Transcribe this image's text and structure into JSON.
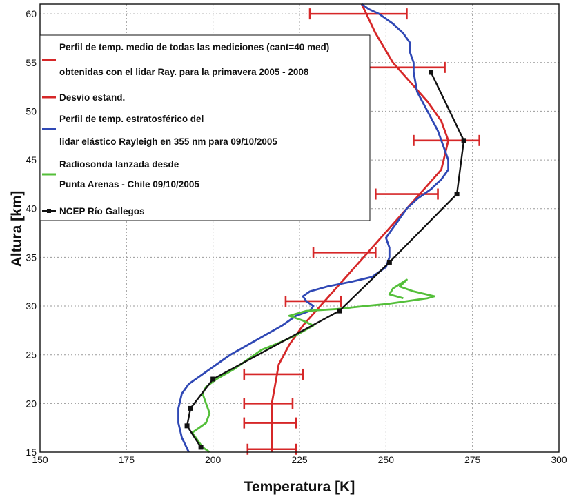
{
  "chart_data": {
    "type": "line",
    "xlabel": "Temperatura  [K]",
    "ylabel": "Altura [km]",
    "xlim": [
      150,
      300
    ],
    "ylim": [
      15,
      61
    ],
    "x_ticks": [
      150,
      175,
      200,
      225,
      250,
      275,
      300
    ],
    "y_ticks": [
      15,
      20,
      25,
      30,
      35,
      40,
      45,
      50,
      55,
      60
    ],
    "grid": true,
    "legend_position": "top-left",
    "legend_entries": [
      "Perfil de temp. medio de todas las mediciones (cant=40 med)",
      "obtenidas con el lidar Ray. para la primavera 2005 - 2008",
      "Desvio estand.",
      "Perfil de temp. estratosférico del",
      "lidar elástico Rayleigh en 355 nm para 09/10/2005",
      "Radiosonda lanzada desde",
      "Punta Arenas - Chile 09/10/2005",
      "NCEP Río Gallegos"
    ],
    "series": [
      {
        "name": "Perfil de temp. medio de todas las mediciones (cant=40 med) obtenidas con el lidar Ray. para la primavera 2005 - 2008",
        "color": "#d62728",
        "x": [
          217,
          217,
          217,
          218,
          219,
          222,
          226,
          231,
          236,
          241,
          246,
          251,
          256,
          261,
          266,
          268,
          266,
          262,
          257,
          252,
          247,
          243
        ],
        "y": [
          15,
          18,
          20,
          22,
          24,
          26,
          28,
          30,
          32,
          34,
          36,
          38,
          40,
          42,
          44,
          47,
          49,
          51,
          53,
          55,
          58,
          61
        ]
      },
      {
        "name": "Desvio estand.",
        "color": "#d62728",
        "type": "errorbar",
        "points": [
          {
            "y": 15.3,
            "x": 217,
            "xmin": 210,
            "xmax": 224
          },
          {
            "y": 18,
            "x": 216.5,
            "xmin": 209,
            "xmax": 224
          },
          {
            "y": 20,
            "x": 216,
            "xmin": 209,
            "xmax": 223
          },
          {
            "y": 23,
            "x": 217.5,
            "xmin": 209,
            "xmax": 226
          },
          {
            "y": 30.5,
            "x": 229.5,
            "xmin": 221,
            "xmax": 237
          },
          {
            "y": 35.5,
            "x": 238,
            "xmin": 229,
            "xmax": 247
          },
          {
            "y": 41.5,
            "x": 256,
            "xmin": 247,
            "xmax": 265
          },
          {
            "y": 47,
            "x": 267.5,
            "xmin": 258,
            "xmax": 277
          },
          {
            "y": 54.5,
            "x": 256,
            "xmin": 245,
            "xmax": 267
          },
          {
            "y": 60,
            "x": 242,
            "xmin": 228,
            "xmax": 256
          }
        ]
      },
      {
        "name": "Perfil de temp. estratosférico del lidar elástico Rayleigh en 355 nm para 09/10/2005",
        "color": "#2f48b5",
        "x": [
          193,
          191,
          190,
          190,
          191,
          193,
          197,
          201,
          205,
          210,
          215,
          220,
          224,
          228,
          229,
          227,
          226,
          228,
          233,
          240,
          246,
          250,
          251,
          251,
          250,
          253,
          256,
          259,
          263,
          266,
          268,
          268,
          267,
          265,
          262,
          259,
          258,
          258,
          257,
          257,
          255,
          252,
          248,
          245,
          243
        ],
        "y": [
          15,
          16.5,
          18,
          19.5,
          21,
          22,
          23,
          24,
          25,
          26,
          27,
          28,
          29,
          29.5,
          30,
          30.5,
          31,
          31.5,
          32,
          32.5,
          33,
          34,
          35,
          36,
          37,
          38.5,
          40,
          41,
          42,
          43,
          44,
          45,
          46,
          48,
          50,
          52,
          54,
          55,
          56,
          57,
          58,
          59,
          60,
          60.5,
          61
        ]
      },
      {
        "name": "Radiosonda lanzada desde Punta Arenas - Chile 09/10/2005",
        "color": "#54bf3a",
        "x": [
          199,
          197,
          196,
          194,
          196,
          198,
          199,
          198,
          197,
          198,
          201,
          206,
          210,
          214,
          219,
          224,
          229,
          226,
          222,
          227,
          236,
          244,
          250,
          256,
          262,
          264,
          258,
          254,
          256,
          252,
          251,
          255
        ],
        "y": [
          15,
          15.5,
          16,
          17,
          17.5,
          18,
          19,
          20,
          21,
          21.7,
          22.5,
          23.5,
          24.5,
          25.5,
          26.2,
          27,
          28,
          28.5,
          29,
          29.5,
          29.7,
          30,
          30.2,
          30.5,
          30.8,
          31,
          31.5,
          32,
          32.7,
          31.8,
          31.2,
          30.8
        ]
      },
      {
        "name": "NCEP Río Gallegos",
        "color": "#111111",
        "x": [
          196.5,
          192.5,
          193.5,
          200,
          236.5,
          251,
          270.5,
          272.5,
          263,
          263
        ],
        "y": [
          15.5,
          17.7,
          19.5,
          22.5,
          29.5,
          34.5,
          41.5,
          47,
          54,
          54
        ]
      }
    ]
  }
}
